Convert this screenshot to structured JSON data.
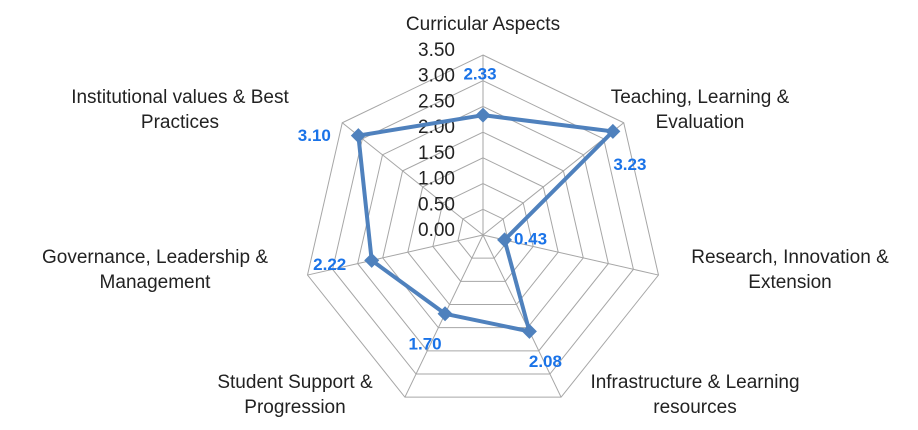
{
  "chart_data": {
    "type": "radar",
    "categories": [
      "Curricular Aspects",
      "Teaching, Learning & Evaluation",
      "Research, Innovation & Extension",
      "Infrastructure & Learning resources",
      "Student Support & Progression",
      "Governance, Leadership & Management",
      "Institutional values & Best Practices"
    ],
    "series": [
      {
        "color": "#4f81bd",
        "values": [
          2.33,
          3.23,
          0.43,
          2.08,
          1.7,
          2.22,
          3.1
        ],
        "value_labels": [
          "2.33",
          "3.23",
          "0.43",
          "2.08",
          "1.70",
          "2.22",
          "3.10"
        ]
      }
    ],
    "ylim": [
      0,
      3.5
    ],
    "yticks": [
      {
        "value": 0,
        "label": "0.00"
      },
      {
        "value": 0.5,
        "label": "0.50"
      },
      {
        "value": 1,
        "label": "1.00"
      },
      {
        "value": 1.5,
        "label": "1.50"
      },
      {
        "value": 2,
        "label": "2.00"
      },
      {
        "value": 2.5,
        "label": "2.50"
      },
      {
        "value": 3,
        "label": "3.00"
      },
      {
        "value": 3.5,
        "label": "3.50"
      }
    ],
    "grid": true,
    "value_label_color": "#1a73e8"
  }
}
